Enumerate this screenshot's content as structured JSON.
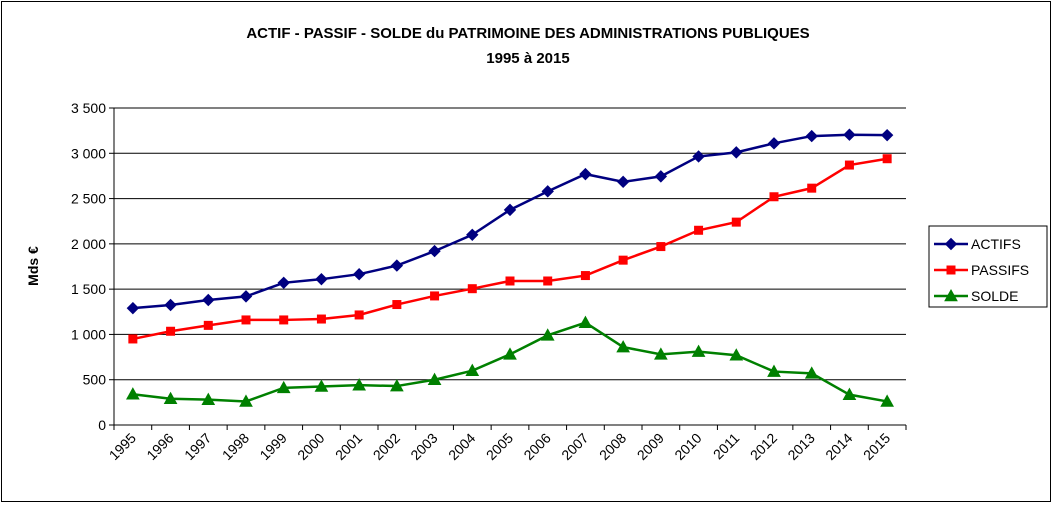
{
  "chart_data": {
    "type": "line",
    "title": "ACTIF - PASSIF - SOLDE du PATRIMOINE DES ADMINISTRATIONS PUBLIQUES",
    "subtitle": "1995 à 2015",
    "xlabel": "",
    "ylabel": "Mds €",
    "ylim": [
      0,
      3500
    ],
    "yticks": [
      0,
      500,
      1000,
      1500,
      2000,
      2500,
      3000,
      3500
    ],
    "ytick_labels": [
      "0",
      "500",
      "1 000",
      "1 500",
      "2 000",
      "2 500",
      "3 000",
      "3 500"
    ],
    "categories": [
      "1995",
      "1996",
      "1997",
      "1998",
      "1999",
      "2000",
      "2001",
      "2002",
      "2003",
      "2004",
      "2005",
      "2006",
      "2007",
      "2008",
      "2009",
      "2010",
      "2011",
      "2012",
      "2013",
      "2014",
      "2015"
    ],
    "grid": true,
    "legend_position": "right",
    "series": [
      {
        "name": "ACTIFS",
        "color": "#000080",
        "marker": "diamond",
        "values": [
          1290,
          1325,
          1380,
          1420,
          1570,
          1610,
          1665,
          1760,
          1920,
          2100,
          2375,
          2580,
          2770,
          2685,
          2745,
          2965,
          3010,
          3110,
          3190,
          3205,
          3200
        ]
      },
      {
        "name": "PASSIFS",
        "color": "#ff0000",
        "marker": "square",
        "values": [
          950,
          1035,
          1100,
          1160,
          1160,
          1170,
          1215,
          1330,
          1425,
          1505,
          1590,
          1590,
          1650,
          1820,
          1970,
          2150,
          2240,
          2520,
          2615,
          2870,
          2940
        ]
      },
      {
        "name": "SOLDE",
        "color": "#008000",
        "marker": "triangle",
        "values": [
          340,
          290,
          280,
          260,
          410,
          425,
          440,
          430,
          500,
          600,
          780,
          990,
          1130,
          860,
          780,
          810,
          770,
          590,
          570,
          335,
          260
        ]
      }
    ]
  }
}
